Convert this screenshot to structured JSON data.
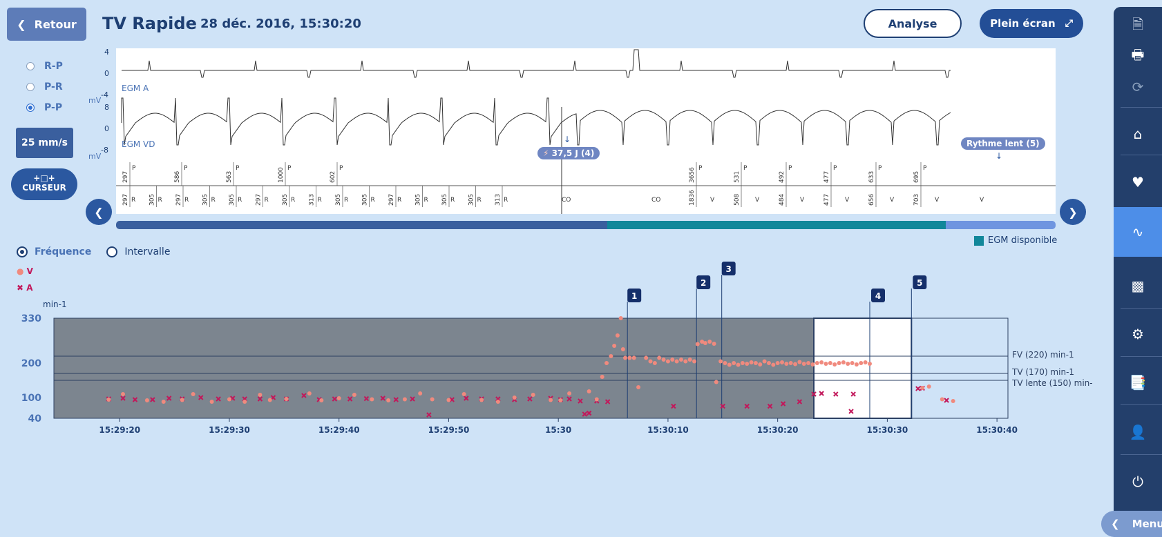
{
  "header": {
    "back_label": "Retour",
    "title": "TV Rapide",
    "datetime": "28 déc. 2016, 15:30:20",
    "analyse_label": "Analyse",
    "fullscreen_label": "Plein écran"
  },
  "left_controls": {
    "radios": [
      {
        "label": "R-P",
        "selected": false
      },
      {
        "label": "P-R",
        "selected": false
      },
      {
        "label": "P-P",
        "selected": true
      }
    ],
    "speed": "25 mm/s",
    "cursor_label": "CURSEUR"
  },
  "egm": {
    "channel_a": {
      "name": "EGM A",
      "ticks": [
        "4",
        "0",
        "-4"
      ],
      "unit": "mV"
    },
    "channel_vd": {
      "name": "EGM VD",
      "ticks": [
        "8",
        "0",
        "-8"
      ],
      "unit": "mV"
    },
    "shock_label": "37,5 J (4)",
    "slow_rhythm_label": "Rythme lent (5)",
    "p_intervals": [
      "297",
      "586",
      "563",
      "1000",
      "602",
      "3656",
      "531",
      "492",
      "477",
      "633",
      "695"
    ],
    "v_intervals": [
      "297",
      "305",
      "297",
      "305",
      "305",
      "297",
      "305",
      "313",
      "305",
      "305",
      "297",
      "305",
      "305",
      "305",
      "313",
      "1836",
      "508",
      "484",
      "477",
      "656",
      "703"
    ],
    "bottom_markers": [
      "R",
      "R",
      "R",
      "R",
      "R",
      "R",
      "R",
      "R",
      "R",
      "R",
      "R",
      "R",
      "R",
      "R",
      "R",
      "CO",
      "CO",
      "V",
      "V",
      "V",
      "V",
      "V",
      "V",
      "V"
    ]
  },
  "egm_legend": {
    "label": "EGM disponible",
    "color": "#11879a"
  },
  "scrollbar": {
    "segments": [
      {
        "color": "#3a5f9e",
        "fraction": 0.523
      },
      {
        "color": "#11879a",
        "fraction": 0.36
      },
      {
        "color": "#6f95e0",
        "fraction": 0.117
      }
    ]
  },
  "mode": {
    "frequency_label": "Fréquence",
    "interval_label": "Intervalle",
    "selected": "frequency"
  },
  "chart_data": {
    "type": "scatter",
    "ylabel": "min-1",
    "yticks": [
      330,
      200,
      100,
      40
    ],
    "ylim": [
      40,
      330
    ],
    "xticks": [
      "15:29:20",
      "15:29:30",
      "15:29:40",
      "15:29:50",
      "15:30",
      "15:30:10",
      "15:30:20",
      "15:30:30",
      "15:30:40"
    ],
    "xlim_seconds": [
      -36,
      51
    ],
    "legend": [
      {
        "name": "V",
        "marker": "dot",
        "color": "#f08a7e"
      },
      {
        "name": "A",
        "marker": "x",
        "color": "#c2185b"
      }
    ],
    "thresholds": [
      {
        "label": "FV (220) min-1",
        "value": 220
      },
      {
        "label": "TV (170) min-1",
        "value": 170
      },
      {
        "label": "TV lente (150) min-",
        "value": 150
      }
    ],
    "events": [
      {
        "id": "1",
        "t": 16.3
      },
      {
        "id": "2",
        "t": 22.6
      },
      {
        "id": "3",
        "t": 24.9
      },
      {
        "id": "4",
        "t": 38.4
      },
      {
        "id": "5",
        "t": 42.2
      }
    ],
    "dark_region_end_t": 33.3,
    "window_range_t": [
      33.3,
      42.2
    ],
    "series_V": [
      [
        -31,
        94
      ],
      [
        -29.7,
        110
      ],
      [
        -27.5,
        92
      ],
      [
        -26,
        88
      ],
      [
        -24.3,
        93
      ],
      [
        -23.3,
        110
      ],
      [
        -21.6,
        88
      ],
      [
        -20,
        95
      ],
      [
        -18.6,
        88
      ],
      [
        -17.2,
        108
      ],
      [
        -16.3,
        93
      ],
      [
        -14.8,
        96
      ],
      [
        -12.7,
        112
      ],
      [
        -11.6,
        92
      ],
      [
        -10,
        98
      ],
      [
        -8.6,
        108
      ],
      [
        -7,
        95
      ],
      [
        -5.5,
        92
      ],
      [
        -4,
        95
      ],
      [
        -2.6,
        112
      ],
      [
        -1.5,
        95
      ],
      [
        0,
        93
      ],
      [
        1.4,
        110
      ],
      [
        3,
        93
      ],
      [
        4.5,
        88
      ],
      [
        6,
        100
      ],
      [
        7.7,
        108
      ],
      [
        9.3,
        93
      ],
      [
        10.2,
        92
      ],
      [
        11,
        112
      ],
      [
        12.8,
        118
      ],
      [
        13.5,
        95
      ],
      [
        14,
        160
      ],
      [
        14.4,
        200
      ],
      [
        14.8,
        220
      ],
      [
        15.1,
        250
      ],
      [
        15.4,
        280
      ],
      [
        15.7,
        330
      ],
      [
        15.9,
        240
      ],
      [
        16.1,
        215
      ],
      [
        16.5,
        215
      ],
      [
        16.9,
        215
      ],
      [
        17.3,
        130
      ],
      [
        18,
        215
      ],
      [
        18.4,
        205
      ],
      [
        18.8,
        200
      ],
      [
        19.2,
        215
      ],
      [
        19.6,
        210
      ],
      [
        20,
        205
      ],
      [
        20.4,
        210
      ],
      [
        20.8,
        205
      ],
      [
        21.2,
        210
      ],
      [
        21.6,
        205
      ],
      [
        22,
        210
      ],
      [
        22.4,
        205
      ],
      [
        22.7,
        255
      ],
      [
        23.1,
        262
      ],
      [
        23.4,
        258
      ],
      [
        23.8,
        262
      ],
      [
        24.2,
        256
      ],
      [
        24.4,
        145
      ],
      [
        24.8,
        205
      ],
      [
        25.2,
        200
      ],
      [
        25.6,
        195
      ],
      [
        26,
        200
      ],
      [
        26.4,
        195
      ],
      [
        26.8,
        200
      ],
      [
        27.2,
        198
      ],
      [
        27.6,
        202
      ],
      [
        28,
        200
      ],
      [
        28.4,
        196
      ],
      [
        28.8,
        205
      ],
      [
        29.2,
        200
      ],
      [
        29.6,
        195
      ],
      [
        30,
        200
      ],
      [
        30.4,
        202
      ],
      [
        30.8,
        198
      ],
      [
        31.2,
        200
      ],
      [
        31.6,
        197
      ],
      [
        32,
        203
      ],
      [
        32.4,
        198
      ],
      [
        32.8,
        200
      ],
      [
        33.2,
        196
      ],
      [
        33.6,
        200
      ],
      [
        34,
        202
      ],
      [
        34.4,
        198
      ],
      [
        34.8,
        200
      ],
      [
        35.2,
        196
      ],
      [
        35.6,
        200
      ],
      [
        36,
        202
      ],
      [
        36.4,
        198
      ],
      [
        36.8,
        200
      ],
      [
        37.2,
        196
      ],
      [
        37.6,
        200
      ],
      [
        38,
        202
      ],
      [
        38.4,
        198
      ],
      [
        43.2,
        128
      ],
      [
        43.8,
        132
      ],
      [
        45,
        95
      ],
      [
        46,
        90
      ]
    ],
    "series_A": [
      [
        -31,
        96
      ],
      [
        -29.7,
        98
      ],
      [
        -28.6,
        94
      ],
      [
        -27,
        94
      ],
      [
        -25.5,
        98
      ],
      [
        -24.3,
        96
      ],
      [
        -22.6,
        100
      ],
      [
        -21,
        96
      ],
      [
        -19.7,
        98
      ],
      [
        -18.6,
        96
      ],
      [
        -17.2,
        96
      ],
      [
        -16,
        100
      ],
      [
        -14.8,
        96
      ],
      [
        -13.2,
        106
      ],
      [
        -11.8,
        94
      ],
      [
        -10.4,
        96
      ],
      [
        -9,
        96
      ],
      [
        -7.5,
        97
      ],
      [
        -6,
        98
      ],
      [
        -4.8,
        94
      ],
      [
        -3.3,
        96
      ],
      [
        -1.8,
        50
      ],
      [
        0.3,
        94
      ],
      [
        1.6,
        98
      ],
      [
        3,
        96
      ],
      [
        4.5,
        96
      ],
      [
        6,
        94
      ],
      [
        7.4,
        96
      ],
      [
        9.3,
        98
      ],
      [
        10.2,
        94
      ],
      [
        11,
        96
      ],
      [
        12,
        90
      ],
      [
        12.4,
        52
      ],
      [
        12.8,
        55
      ],
      [
        13.5,
        90
      ],
      [
        14.5,
        88
      ],
      [
        20.5,
        75
      ],
      [
        25,
        75
      ],
      [
        27.2,
        75
      ],
      [
        29.3,
        75
      ],
      [
        30.5,
        82
      ],
      [
        32,
        88
      ],
      [
        33.3,
        110
      ],
      [
        34,
        112
      ],
      [
        35.3,
        110
      ],
      [
        36.7,
        60
      ],
      [
        36.9,
        110
      ],
      [
        42.8,
        126
      ],
      [
        43.2,
        127
      ],
      [
        45.4,
        92
      ]
    ]
  }
}
